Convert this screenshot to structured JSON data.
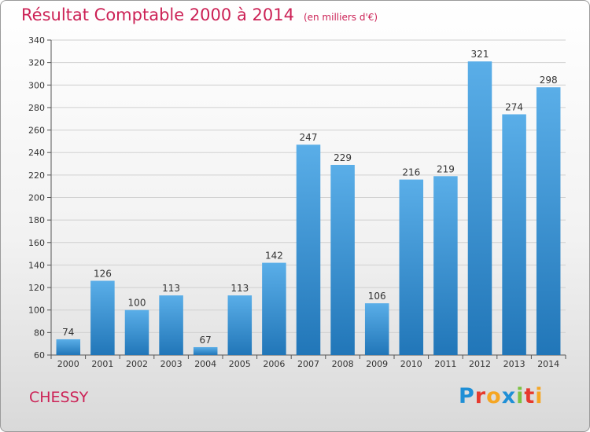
{
  "header": {
    "title": "Résultat Comptable 2000 à 2014",
    "unit": "(en milliers d'€)"
  },
  "footer": {
    "commune": "CHESSY",
    "logo": [
      "P",
      "r",
      "o",
      "x",
      "i",
      "t",
      "i"
    ],
    "logo_colors": [
      "#1f8fd6",
      "#e63a2e",
      "#f5a623",
      "#1f8fd6",
      "#7cc242",
      "#e63a2e",
      "#f5a623"
    ]
  },
  "colors": {
    "bar_top": "#5aaee8",
    "bar_bottom": "#2176b8",
    "title": "#cc2256"
  },
  "chart_data": {
    "type": "bar",
    "title": "Résultat Comptable 2000 à 2014",
    "categories": [
      "2000",
      "2001",
      "2002",
      "2003",
      "2004",
      "2005",
      "2006",
      "2007",
      "2008",
      "2009",
      "2010",
      "2011",
      "2012",
      "2013",
      "2014"
    ],
    "values": [
      74,
      126,
      100,
      113,
      67,
      113,
      142,
      247,
      229,
      106,
      216,
      219,
      321,
      274,
      298
    ],
    "ylim": [
      60,
      340
    ],
    "yticks": [
      60,
      80,
      100,
      120,
      140,
      160,
      180,
      200,
      220,
      240,
      260,
      280,
      300,
      320,
      340
    ],
    "grid": true,
    "xlabel": "",
    "ylabel": ""
  }
}
